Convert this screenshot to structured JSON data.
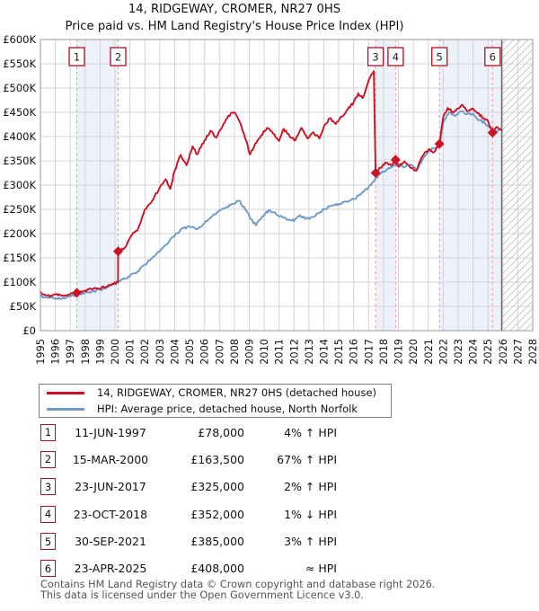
{
  "title": "14, RIDGEWAY, CROMER, NR27 0HS",
  "subtitle": "Price paid vs. HM Land Registry's House Price Index (HPI)",
  "legend": [
    {
      "label": "14, RIDGEWAY, CROMER, NR27 0HS (detached house)",
      "color": "#cc1122"
    },
    {
      "label": "HPI: Average price, detached house, North Norfolk",
      "color": "#6d9bc8"
    }
  ],
  "transactions": [
    {
      "num": "1",
      "date": "11-JUN-1997",
      "price": "£78,000",
      "hpi": "4% ↑ HPI"
    },
    {
      "num": "2",
      "date": "15-MAR-2000",
      "price": "£163,500",
      "hpi": "67% ↑ HPI"
    },
    {
      "num": "3",
      "date": "23-JUN-2017",
      "price": "£325,000",
      "hpi": "2% ↑ HPI"
    },
    {
      "num": "4",
      "date": "23-OCT-2018",
      "price": "£352,000",
      "hpi": "1% ↓ HPI"
    },
    {
      "num": "5",
      "date": "30-SEP-2021",
      "price": "£385,000",
      "hpi": "3% ↑ HPI"
    },
    {
      "num": "6",
      "date": "23-APR-2025",
      "price": "£408,000",
      "hpi": "≈ HPI"
    }
  ],
  "footer": {
    "line1": "Contains HM Land Registry data © Crown copyright and database right 2026.",
    "line2": "This data is licensed under the Open Government Licence v3.0."
  },
  "chart_data": {
    "type": "line",
    "title": "14, RIDGEWAY, CROMER, NR27 0HS",
    "subtitle": "Price paid vs. HM Land Registry's House Price Index (HPI)",
    "x_axis": {
      "start": 1995,
      "end": 2028,
      "tick_step": 1
    },
    "y_axis": {
      "min": 0,
      "max": 600000,
      "tick_step": 50000,
      "tick_prefix": "£",
      "tick_suffix": "K"
    },
    "grid": true,
    "colors": {
      "price_line": "#cc1122",
      "hpi_line": "#6d9bc8",
      "sale_dash": "#f29a9a",
      "band": "#edf1fa",
      "grid": "#d4d4d4",
      "border": "#999999",
      "today_line": "#666666",
      "hatch": "#c9c9c9",
      "box_border": "#aa1122"
    },
    "sales": [
      {
        "num": "1",
        "year": 1997.44,
        "price": 78000
      },
      {
        "num": "2",
        "year": 2000.21,
        "price": 163500
      },
      {
        "num": "3",
        "year": 2017.47,
        "price": 325000
      },
      {
        "num": "4",
        "year": 2018.81,
        "price": 352000
      },
      {
        "num": "5",
        "year": 2021.75,
        "price": 385000
      },
      {
        "num": "6",
        "year": 2025.31,
        "price": 408000
      }
    ],
    "ownership_bands": [
      [
        1997.44,
        2000.21
      ],
      [
        2017.47,
        2018.81
      ],
      [
        2021.75,
        2025.92
      ]
    ],
    "future_hatch_start": 2025.92,
    "series": [
      {
        "name": "hpi_average_detached_north_norfolk",
        "color": "#6d9bc8",
        "points": [
          [
            1995.0,
            71000
          ],
          [
            1995.5,
            68000
          ],
          [
            1996.0,
            66000
          ],
          [
            1996.5,
            68000
          ],
          [
            1997.0,
            71000
          ],
          [
            1997.44,
            75000
          ],
          [
            1998.0,
            78000
          ],
          [
            1998.5,
            81000
          ],
          [
            1999.0,
            84500
          ],
          [
            1999.5,
            90000
          ],
          [
            2000.0,
            97000
          ],
          [
            2000.5,
            105000
          ],
          [
            2001.0,
            112000
          ],
          [
            2001.5,
            122000
          ],
          [
            2002.0,
            136000
          ],
          [
            2002.5,
            150000
          ],
          [
            2003.0,
            163000
          ],
          [
            2003.5,
            178000
          ],
          [
            2004.0,
            196000
          ],
          [
            2004.5,
            210000
          ],
          [
            2005.0,
            214000
          ],
          [
            2005.5,
            209000
          ],
          [
            2006.0,
            222000
          ],
          [
            2006.5,
            235000
          ],
          [
            2007.0,
            248000
          ],
          [
            2007.5,
            255000
          ],
          [
            2008.0,
            262000
          ],
          [
            2008.3,
            268000
          ],
          [
            2008.8,
            248000
          ],
          [
            2009.1,
            230000
          ],
          [
            2009.45,
            217000
          ],
          [
            2009.8,
            231000
          ],
          [
            2010.1,
            243000
          ],
          [
            2010.4,
            248000
          ],
          [
            2010.8,
            240000
          ],
          [
            2011.2,
            235000
          ],
          [
            2011.6,
            228000
          ],
          [
            2012.0,
            226000
          ],
          [
            2012.4,
            238000
          ],
          [
            2012.8,
            230000
          ],
          [
            2013.2,
            234000
          ],
          [
            2013.6,
            242000
          ],
          [
            2014.0,
            250000
          ],
          [
            2014.5,
            257000
          ],
          [
            2015.0,
            261000
          ],
          [
            2015.5,
            266000
          ],
          [
            2016.0,
            271000
          ],
          [
            2016.5,
            281000
          ],
          [
            2017.0,
            296000
          ],
          [
            2017.5,
            316000
          ],
          [
            2018.0,
            328000
          ],
          [
            2018.5,
            338000
          ],
          [
            2019.0,
            344000
          ],
          [
            2019.4,
            337000
          ],
          [
            2019.8,
            343000
          ],
          [
            2020.2,
            331000
          ],
          [
            2020.6,
            352000
          ],
          [
            2021.0,
            368000
          ],
          [
            2021.4,
            376000
          ],
          [
            2021.75,
            380000
          ],
          [
            2022.0,
            428000
          ],
          [
            2022.4,
            450000
          ],
          [
            2022.8,
            442000
          ],
          [
            2023.2,
            452000
          ],
          [
            2023.6,
            446000
          ],
          [
            2024.0,
            448000
          ],
          [
            2024.4,
            434000
          ],
          [
            2024.8,
            428000
          ],
          [
            2025.2,
            418000
          ],
          [
            2025.5,
            410000
          ],
          [
            2025.92,
            418000
          ]
        ]
      },
      {
        "name": "price_paid_hpi_indexed",
        "color": "#cc1122",
        "points": [
          [
            1995.0,
            80000
          ],
          [
            1995.3,
            74000
          ],
          [
            1995.7,
            72000
          ],
          [
            1996.1,
            75500
          ],
          [
            1996.5,
            73000
          ],
          [
            1996.9,
            74500
          ],
          [
            1997.44,
            78000
          ],
          [
            1997.9,
            82000
          ],
          [
            1998.4,
            86000
          ],
          [
            1998.9,
            86500
          ],
          [
            1999.4,
            90000
          ],
          [
            1999.9,
            96000
          ],
          [
            2000.2,
            100000
          ],
          [
            2000.21,
            163500
          ],
          [
            2000.7,
            172000
          ],
          [
            2001.1,
            196000
          ],
          [
            2001.5,
            206000
          ],
          [
            2002.0,
            250000
          ],
          [
            2002.5,
            268000
          ],
          [
            2003.0,
            295000
          ],
          [
            2003.4,
            312000
          ],
          [
            2003.7,
            292000
          ],
          [
            2004.0,
            330000
          ],
          [
            2004.4,
            362000
          ],
          [
            2004.8,
            341000
          ],
          [
            2005.2,
            380000
          ],
          [
            2005.5,
            363000
          ],
          [
            2006.0,
            392000
          ],
          [
            2006.4,
            412000
          ],
          [
            2006.8,
            398000
          ],
          [
            2007.2,
            421000
          ],
          [
            2007.6,
            443000
          ],
          [
            2008.0,
            450000
          ],
          [
            2008.4,
            428000
          ],
          [
            2008.8,
            391000
          ],
          [
            2009.05,
            363000
          ],
          [
            2009.4,
            386000
          ],
          [
            2009.8,
            403000
          ],
          [
            2010.2,
            418000
          ],
          [
            2010.6,
            406000
          ],
          [
            2011.0,
            391000
          ],
          [
            2011.3,
            416000
          ],
          [
            2011.7,
            401000
          ],
          [
            2012.1,
            393000
          ],
          [
            2012.5,
            418000
          ],
          [
            2012.9,
            396000
          ],
          [
            2013.3,
            409000
          ],
          [
            2013.7,
            396000
          ],
          [
            2014.0,
            421000
          ],
          [
            2014.4,
            438000
          ],
          [
            2014.8,
            426000
          ],
          [
            2015.2,
            441000
          ],
          [
            2015.6,
            456000
          ],
          [
            2016.0,
            471000
          ],
          [
            2016.3,
            489000
          ],
          [
            2016.6,
            479000
          ],
          [
            2017.0,
            516000
          ],
          [
            2017.35,
            535000
          ],
          [
            2017.47,
            325000
          ],
          [
            2017.8,
            336000
          ],
          [
            2018.2,
            346000
          ],
          [
            2018.6,
            342000
          ],
          [
            2018.81,
            352000
          ],
          [
            2019.0,
            338000
          ],
          [
            2019.4,
            349000
          ],
          [
            2019.8,
            336000
          ],
          [
            2020.2,
            330000
          ],
          [
            2020.6,
            359000
          ],
          [
            2021.0,
            373000
          ],
          [
            2021.4,
            368000
          ],
          [
            2021.75,
            385000
          ],
          [
            2022.0,
            441000
          ],
          [
            2022.3,
            459000
          ],
          [
            2022.6,
            450000
          ],
          [
            2023.0,
            458000
          ],
          [
            2023.3,
            465000
          ],
          [
            2023.6,
            452000
          ],
          [
            2024.0,
            458000
          ],
          [
            2024.3,
            448000
          ],
          [
            2024.7,
            438000
          ],
          [
            2025.0,
            432000
          ],
          [
            2025.31,
            408000
          ],
          [
            2025.6,
            420000
          ],
          [
            2025.92,
            413000
          ]
        ]
      }
    ]
  }
}
